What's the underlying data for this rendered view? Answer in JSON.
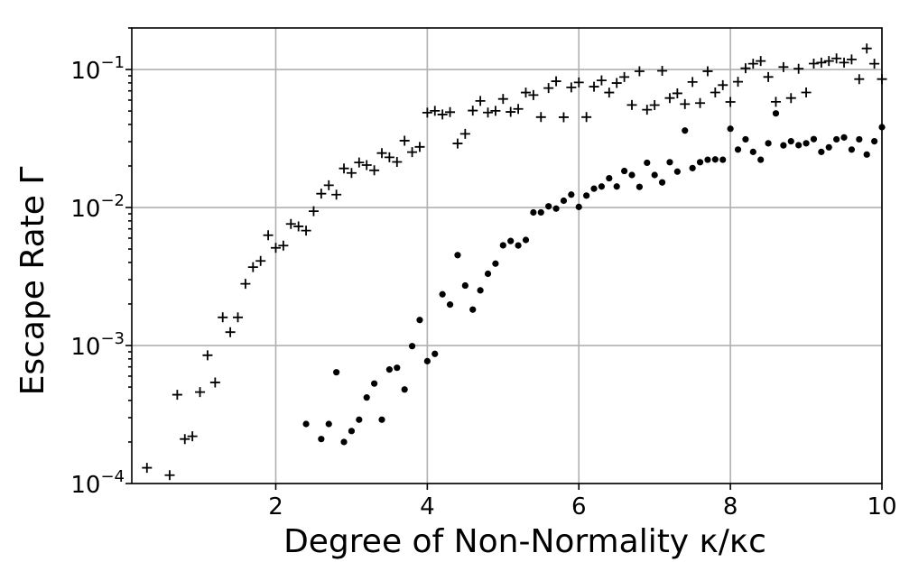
{
  "chart_data": {
    "type": "scatter",
    "xlabel": "Degree of Non-Normality κ/κc",
    "ylabel": "Escape Rate Γ",
    "xlim": [
      0.1,
      10
    ],
    "ylim": [
      0.0001,
      0.2
    ],
    "yscale": "log",
    "grid": true,
    "x_ticks": [
      2,
      4,
      6,
      8,
      10
    ],
    "x_tick_labels": [
      "2",
      "4",
      "6",
      "8",
      "10"
    ],
    "y_ticks": [
      0.0001,
      0.001,
      0.01,
      0.1
    ],
    "y_tick_labels": [
      {
        "base": "10",
        "exp": "−4"
      },
      {
        "base": "10",
        "exp": "−3"
      },
      {
        "base": "10",
        "exp": "−2"
      },
      {
        "base": "10",
        "exp": "−1"
      }
    ],
    "series": [
      {
        "marker": "plus",
        "color": "#000000",
        "points": [
          [
            0.3,
            0.00013
          ],
          [
            0.6,
            0.000115
          ],
          [
            0.7,
            0.00044
          ],
          [
            0.8,
            0.00021
          ],
          [
            0.9,
            0.00022
          ],
          [
            1.0,
            0.00046
          ],
          [
            1.1,
            0.00085
          ],
          [
            1.2,
            0.00054
          ],
          [
            1.3,
            0.0016
          ],
          [
            1.4,
            0.00125
          ],
          [
            1.5,
            0.0016
          ],
          [
            1.6,
            0.0028
          ],
          [
            1.7,
            0.0037
          ],
          [
            1.8,
            0.0041
          ],
          [
            1.9,
            0.0063
          ],
          [
            2.0,
            0.0051
          ],
          [
            2.1,
            0.0053
          ],
          [
            2.2,
            0.0076
          ],
          [
            2.3,
            0.0073
          ],
          [
            2.4,
            0.0068
          ],
          [
            2.5,
            0.0094
          ],
          [
            2.6,
            0.0126
          ],
          [
            2.7,
            0.0145
          ],
          [
            2.8,
            0.0124
          ],
          [
            2.9,
            0.0192
          ],
          [
            3.0,
            0.0178
          ],
          [
            3.1,
            0.0212
          ],
          [
            3.2,
            0.0203
          ],
          [
            3.3,
            0.0186
          ],
          [
            3.4,
            0.0248
          ],
          [
            3.5,
            0.0231
          ],
          [
            3.6,
            0.0214
          ],
          [
            3.7,
            0.0305
          ],
          [
            3.8,
            0.0252
          ],
          [
            3.9,
            0.0275
          ],
          [
            4.0,
            0.0487
          ],
          [
            4.1,
            0.0502
          ],
          [
            4.2,
            0.0472
          ],
          [
            4.3,
            0.0491
          ],
          [
            4.4,
            0.0291
          ],
          [
            4.5,
            0.0342
          ],
          [
            4.6,
            0.0504
          ],
          [
            4.7,
            0.0592
          ],
          [
            4.8,
            0.0488
          ],
          [
            4.9,
            0.0502
          ],
          [
            5.0,
            0.0612
          ],
          [
            5.1,
            0.0493
          ],
          [
            5.2,
            0.0518
          ],
          [
            5.3,
            0.0681
          ],
          [
            5.4,
            0.0653
          ],
          [
            5.5,
            0.0452
          ],
          [
            5.6,
            0.0734
          ],
          [
            5.7,
            0.0822
          ],
          [
            5.8,
            0.0451
          ],
          [
            5.9,
            0.0742
          ],
          [
            6.0,
            0.0806
          ],
          [
            6.1,
            0.0452
          ],
          [
            6.2,
            0.0751
          ],
          [
            6.3,
            0.0834
          ],
          [
            6.4,
            0.0681
          ],
          [
            6.5,
            0.0798
          ],
          [
            6.6,
            0.0882
          ],
          [
            6.7,
            0.0553
          ],
          [
            6.8,
            0.0971
          ],
          [
            6.9,
            0.0511
          ],
          [
            7.0,
            0.0552
          ],
          [
            7.1,
            0.0978
          ],
          [
            7.2,
            0.0621
          ],
          [
            7.3,
            0.0672
          ],
          [
            7.4,
            0.0562
          ],
          [
            7.5,
            0.0812
          ],
          [
            7.6,
            0.0571
          ],
          [
            7.7,
            0.0972
          ],
          [
            7.8,
            0.0682
          ],
          [
            7.9,
            0.0771
          ],
          [
            8.0,
            0.0582
          ],
          [
            8.1,
            0.0815
          ],
          [
            8.2,
            0.1021
          ],
          [
            8.3,
            0.1102
          ],
          [
            8.4,
            0.1153
          ],
          [
            8.5,
            0.0883
          ],
          [
            8.6,
            0.0583
          ],
          [
            8.7,
            0.1042
          ],
          [
            8.8,
            0.0621
          ],
          [
            8.9,
            0.1013
          ],
          [
            9.0,
            0.0682
          ],
          [
            9.1,
            0.1104
          ],
          [
            9.2,
            0.1123
          ],
          [
            9.3,
            0.1152
          ],
          [
            9.4,
            0.1203
          ],
          [
            9.5,
            0.1123
          ],
          [
            9.6,
            0.1183
          ],
          [
            9.7,
            0.0852
          ],
          [
            9.8,
            0.1421
          ],
          [
            9.9,
            0.1102
          ],
          [
            10.0,
            0.0852
          ]
        ]
      },
      {
        "marker": "dot",
        "color": "#000000",
        "points": [
          [
            2.4,
            0.00027
          ],
          [
            2.6,
            0.00021
          ],
          [
            2.7,
            0.00027
          ],
          [
            2.8,
            0.00064
          ],
          [
            2.9,
            0.0002
          ],
          [
            3.0,
            0.00024
          ],
          [
            3.1,
            0.00029
          ],
          [
            3.2,
            0.00042
          ],
          [
            3.3,
            0.00053
          ],
          [
            3.4,
            0.00029
          ],
          [
            3.5,
            0.00067
          ],
          [
            3.6,
            0.00069
          ],
          [
            3.7,
            0.00048
          ],
          [
            3.8,
            0.00099
          ],
          [
            3.9,
            0.00153
          ],
          [
            4.0,
            0.00077
          ],
          [
            4.1,
            0.00087
          ],
          [
            4.2,
            0.00235
          ],
          [
            4.3,
            0.00198
          ],
          [
            4.4,
            0.00452
          ],
          [
            4.5,
            0.00272
          ],
          [
            4.6,
            0.00182
          ],
          [
            4.7,
            0.00251
          ],
          [
            4.8,
            0.00331
          ],
          [
            4.9,
            0.00392
          ],
          [
            5.0,
            0.00532
          ],
          [
            5.1,
            0.00572
          ],
          [
            5.2,
            0.00531
          ],
          [
            5.3,
            0.00582
          ],
          [
            5.4,
            0.00921
          ],
          [
            5.5,
            0.00922
          ],
          [
            5.6,
            0.0102
          ],
          [
            5.7,
            0.00982
          ],
          [
            5.8,
            0.0112
          ],
          [
            5.9,
            0.0124
          ],
          [
            6.0,
            0.0101
          ],
          [
            6.1,
            0.0122
          ],
          [
            6.2,
            0.0137
          ],
          [
            6.3,
            0.0142
          ],
          [
            6.4,
            0.0163
          ],
          [
            6.5,
            0.0142
          ],
          [
            6.6,
            0.0184
          ],
          [
            6.7,
            0.0172
          ],
          [
            6.8,
            0.0141
          ],
          [
            6.9,
            0.0211
          ],
          [
            7.0,
            0.0172
          ],
          [
            7.1,
            0.0152
          ],
          [
            7.2,
            0.0213
          ],
          [
            7.3,
            0.0182
          ],
          [
            7.4,
            0.0361
          ],
          [
            7.5,
            0.0193
          ],
          [
            7.6,
            0.0213
          ],
          [
            7.7,
            0.0222
          ],
          [
            7.8,
            0.0223
          ],
          [
            7.9,
            0.0222
          ],
          [
            8.0,
            0.0372
          ],
          [
            8.1,
            0.0263
          ],
          [
            8.2,
            0.0312
          ],
          [
            8.3,
            0.0253
          ],
          [
            8.4,
            0.0222
          ],
          [
            8.5,
            0.0292
          ],
          [
            8.6,
            0.0481
          ],
          [
            8.7,
            0.0282
          ],
          [
            8.8,
            0.0302
          ],
          [
            8.9,
            0.0283
          ],
          [
            9.0,
            0.0292
          ],
          [
            9.1,
            0.0313
          ],
          [
            9.2,
            0.0253
          ],
          [
            9.3,
            0.0273
          ],
          [
            9.4,
            0.0312
          ],
          [
            9.5,
            0.0322
          ],
          [
            9.6,
            0.0263
          ],
          [
            9.7,
            0.0312
          ],
          [
            9.8,
            0.0242
          ],
          [
            9.9,
            0.0302
          ],
          [
            10.0,
            0.0382
          ]
        ]
      }
    ]
  }
}
